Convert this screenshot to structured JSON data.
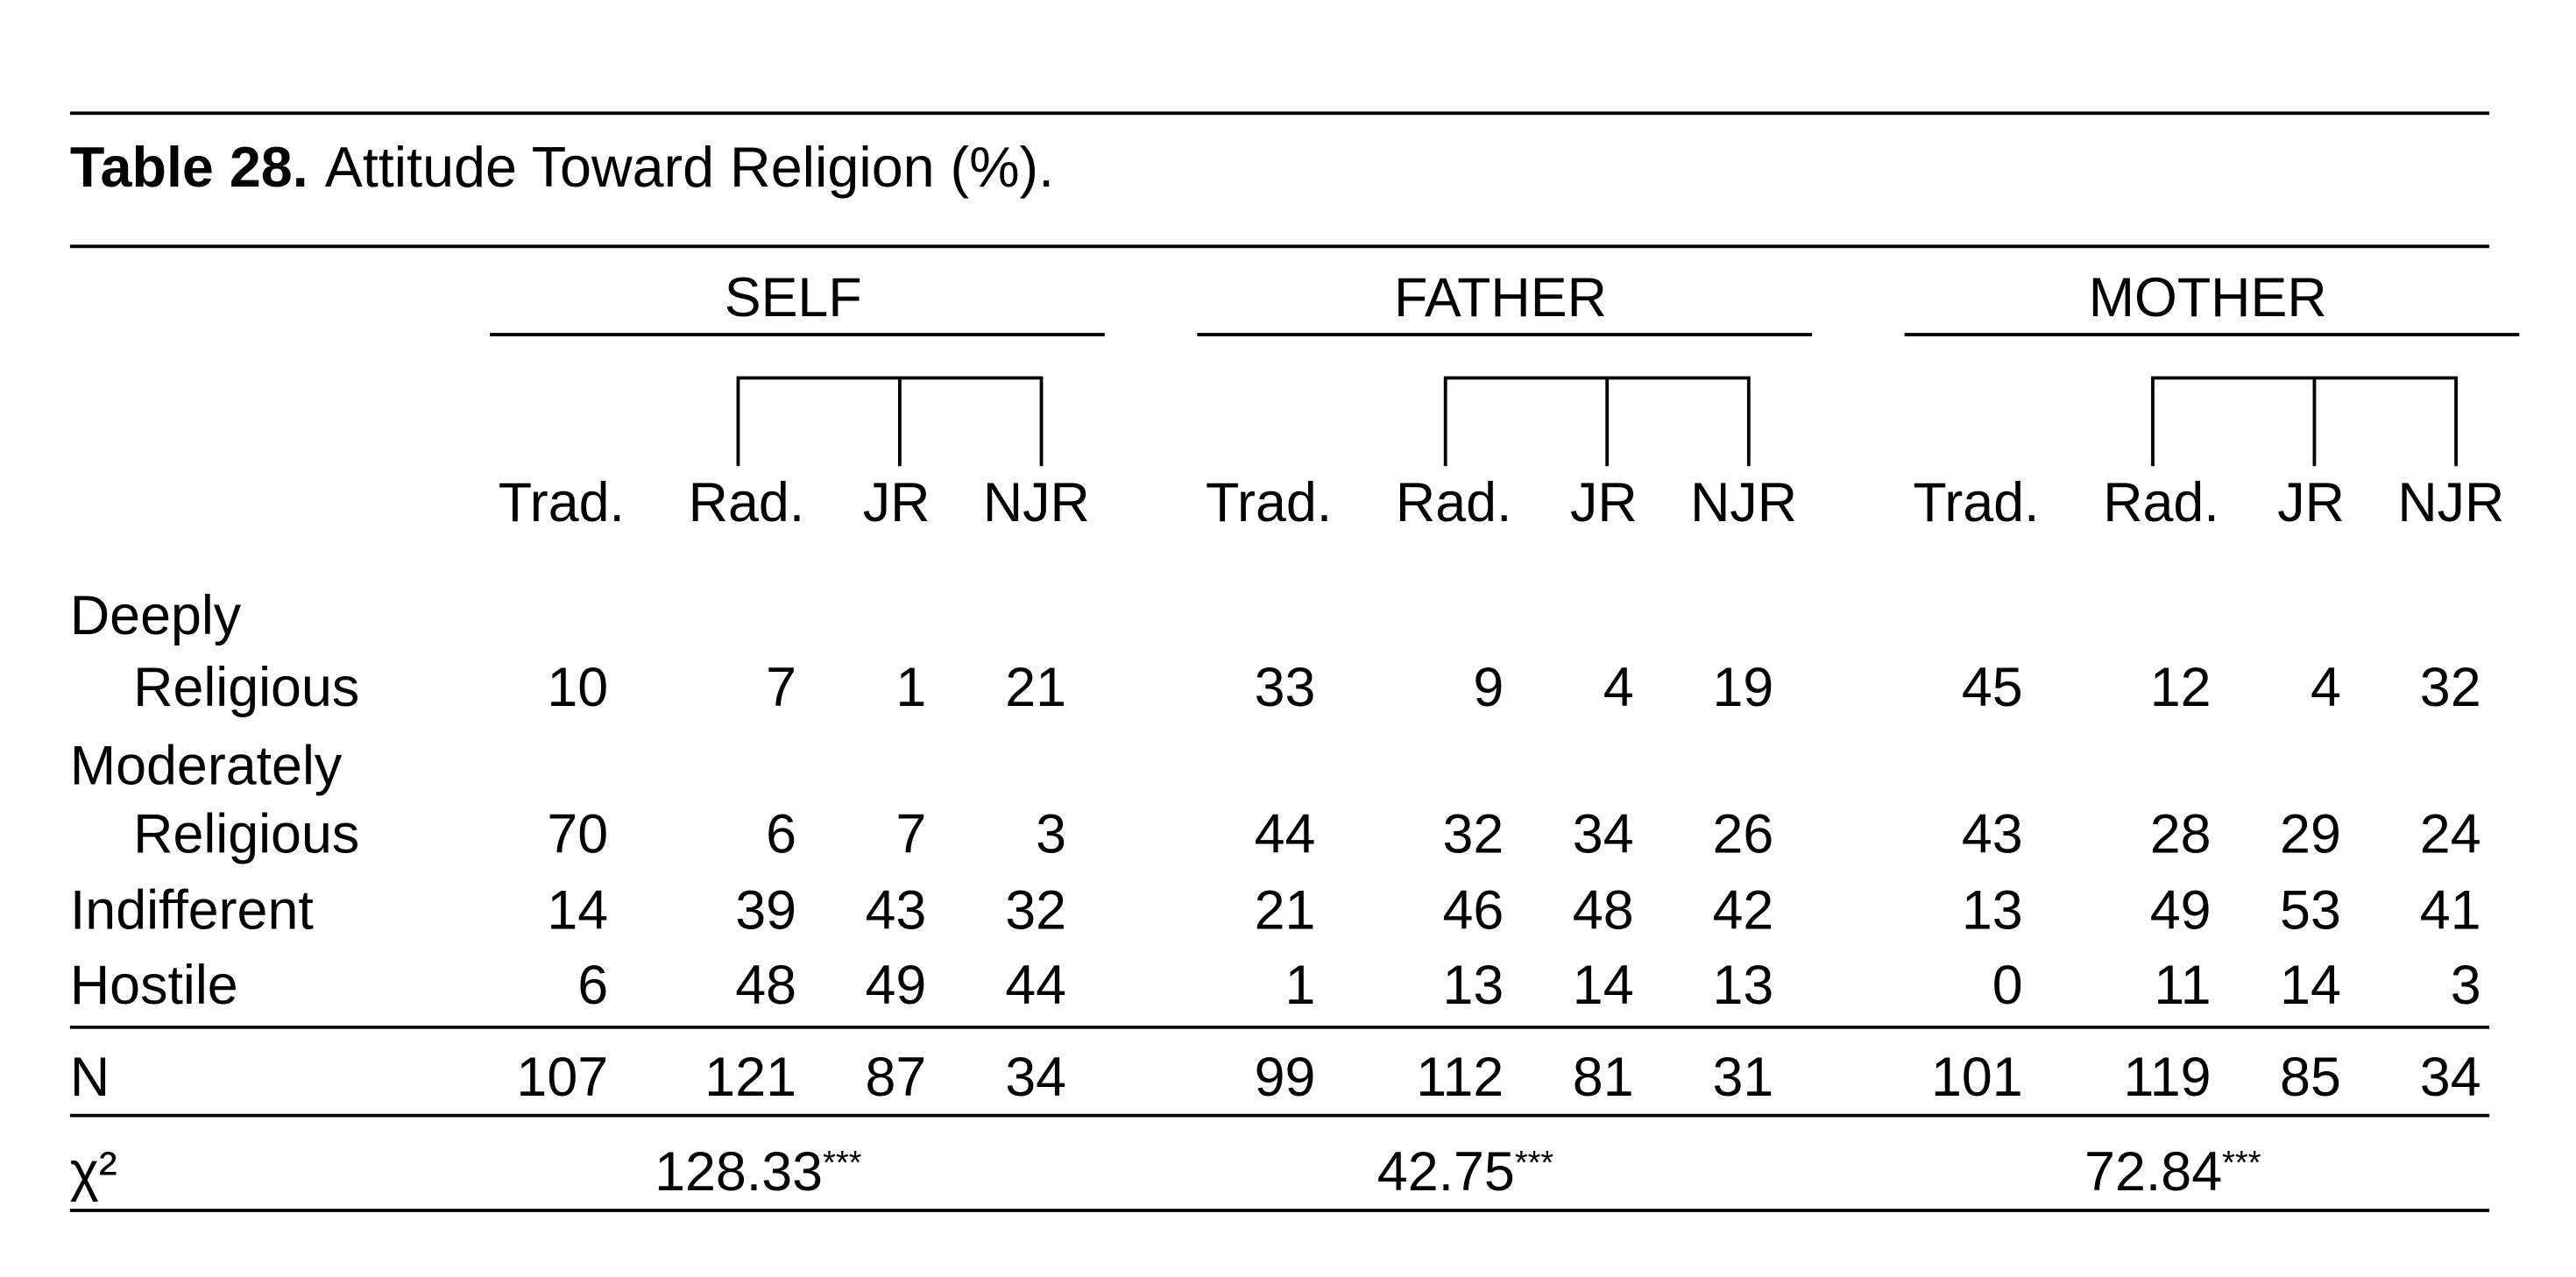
{
  "title": {
    "label": "Table 28.",
    "text": "Attitude Toward Religion (%)."
  },
  "groups": [
    {
      "name": "SELF",
      "columns": [
        "Trad.",
        "Rad.",
        "JR",
        "NJR"
      ]
    },
    {
      "name": "FATHER",
      "columns": [
        "Trad.",
        "Rad.",
        "JR",
        "NJR"
      ]
    },
    {
      "name": "MOTHER",
      "columns": [
        "Trad.",
        "Rad.",
        "JR",
        "NJR"
      ]
    }
  ],
  "rows": [
    {
      "label": [
        "Deeply",
        "Religious"
      ],
      "values": [
        10,
        7,
        1,
        21,
        33,
        9,
        4,
        19,
        45,
        12,
        4,
        32
      ]
    },
    {
      "label": [
        "Moderately",
        "Religious"
      ],
      "values": [
        70,
        6,
        7,
        3,
        44,
        32,
        34,
        26,
        43,
        28,
        29,
        24
      ]
    },
    {
      "label": [
        "Indifferent"
      ],
      "values": [
        14,
        39,
        43,
        32,
        21,
        46,
        48,
        42,
        13,
        49,
        53,
        41
      ]
    },
    {
      "label": [
        "Hostile"
      ],
      "values": [
        6,
        48,
        49,
        44,
        1,
        13,
        14,
        13,
        0,
        11,
        14,
        3
      ]
    }
  ],
  "n": {
    "label": "N",
    "values": [
      107,
      121,
      87,
      34,
      99,
      112,
      81,
      31,
      101,
      119,
      85,
      34
    ]
  },
  "chi_square": {
    "label": "χ²",
    "values": [
      {
        "value": 128.33,
        "sig": "***"
      },
      {
        "value": 42.75,
        "sig": "***"
      },
      {
        "value": 72.84,
        "sig": "***"
      }
    ]
  }
}
